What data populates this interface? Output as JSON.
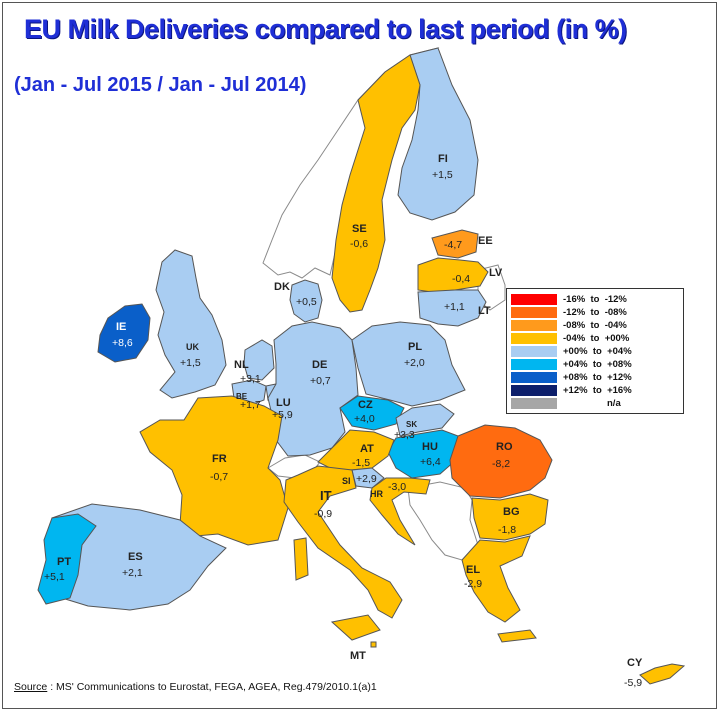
{
  "title": "EU Milk Deliveries compared to last period (in %)",
  "subtitle": "(Jan - Jul 2015 / Jan - Jul 2014)",
  "colors": {
    "dark_blue": "#0a3d9c",
    "mid_blue": "#00b6f0",
    "light_blue": "#a9cdf2",
    "yellow": "#ffc000",
    "orange": "#ff6b10",
    "amber": "#ff9a1c",
    "red": "#ff0000",
    "navy": "#0d1f6b",
    "gray": "#a6a6a6",
    "non_member": "#ffffff"
  },
  "legend": {
    "items": [
      {
        "label": "-16%  to  -12%",
        "color": "#ff0000"
      },
      {
        "label": "-12%  to  -08%",
        "color": "#ff6b10"
      },
      {
        "label": "-08%  to  -04%",
        "color": "#ff9a1c"
      },
      {
        "label": "-04%  to  +00%",
        "color": "#ffc000"
      },
      {
        "label": "+00%  to  +04%",
        "color": "#a9cdf2"
      },
      {
        "label": "+04%  to  +08%",
        "color": "#00b6f0"
      },
      {
        "label": "+08%  to  +12%",
        "color": "#0a5fc9"
      },
      {
        "label": "+12%  to  +16%",
        "color": "#0d1f6b"
      },
      {
        "label": "n/a",
        "color": "#a6a6a6"
      }
    ]
  },
  "countries": [
    {
      "code": "FI",
      "value": "+1,5",
      "change": 1.5
    },
    {
      "code": "SE",
      "value": "-0,6",
      "change": -0.6
    },
    {
      "code": "EE",
      "value": "-4,7",
      "change": -4.7
    },
    {
      "code": "LV",
      "value": "-0,4",
      "change": -0.4
    },
    {
      "code": "LT",
      "value": "+1,1",
      "change": 1.1
    },
    {
      "code": "DK",
      "value": "+0,5",
      "change": 0.5
    },
    {
      "code": "IE",
      "value": "+8,6",
      "change": 8.6
    },
    {
      "code": "UK",
      "value": "+1,5",
      "change": 1.5
    },
    {
      "code": "NL",
      "value": "+3,1",
      "change": 3.1
    },
    {
      "code": "BE",
      "value": "+1,7",
      "change": 1.7
    },
    {
      "code": "LU",
      "value": "+5,9",
      "change": 5.9
    },
    {
      "code": "DE",
      "value": "+0,7",
      "change": 0.7
    },
    {
      "code": "PL",
      "value": "+2,0",
      "change": 2.0
    },
    {
      "code": "CZ",
      "value": "+4,0",
      "change": 4.0
    },
    {
      "code": "SK",
      "value": "+3,3",
      "change": 3.3
    },
    {
      "code": "HU",
      "value": "+6,4",
      "change": 6.4
    },
    {
      "code": "RO",
      "value": "-8,2",
      "change": -8.2
    },
    {
      "code": "AT",
      "value": "-1,5",
      "change": -1.5
    },
    {
      "code": "SI",
      "value": "+2,9",
      "change": 2.9
    },
    {
      "code": "HR",
      "value": "-3,0",
      "change": -3.0
    },
    {
      "code": "FR",
      "value": "-0,7",
      "change": -0.7
    },
    {
      "code": "IT",
      "value": "-0,9",
      "change": -0.9
    },
    {
      "code": "BG",
      "value": "-1,8",
      "change": -1.8
    },
    {
      "code": "EL",
      "value": "-2,9",
      "change": -2.9
    },
    {
      "code": "ES",
      "value": "+2,1",
      "change": 2.1
    },
    {
      "code": "PT",
      "value": "+5,1",
      "change": 5.1
    },
    {
      "code": "MT",
      "value": "",
      "change": null
    },
    {
      "code": "CY",
      "value": "-5,9",
      "change": -5.9
    }
  ],
  "source": {
    "prefix": "Source",
    "text": " : MS' Communications to Eurostat, FEGA, AGEA, Reg.479/2010.1(a)1"
  }
}
